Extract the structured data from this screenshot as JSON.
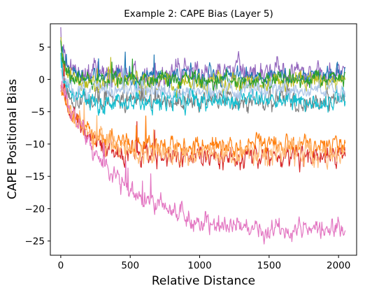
{
  "chart_data": {
    "type": "line",
    "title": "Example 2: CAPE Bias (Layer 5)",
    "xlabel": "Relative Distance",
    "ylabel": "CAPE Positional Bias",
    "xlim": [
      -75,
      2130
    ],
    "ylim": [
      -27.2,
      8.6
    ],
    "x_ticks": [
      0,
      500,
      1000,
      1500,
      2000
    ],
    "y_ticks": [
      5,
      0,
      -5,
      -10,
      -15,
      -20,
      -25
    ],
    "x_tick_labels": [
      "0",
      "500",
      "1000",
      "1500",
      "2000"
    ],
    "y_tick_labels": [
      "5",
      "0",
      "−5",
      "−10",
      "−15",
      "−20",
      "−25"
    ],
    "grid": false,
    "legend": "none",
    "x_range": [
      0,
      2048
    ],
    "series": [
      {
        "color": "#9467bd",
        "start": 7.8,
        "end": 1.0,
        "tau": 25,
        "noise": 1.7
      },
      {
        "color": "#1f77b4",
        "start": 6.5,
        "end": 0.5,
        "tau": 25,
        "noise": 1.3
      },
      {
        "color": "#bcbd22",
        "start": 6.0,
        "end": -0.5,
        "tau": 25,
        "noise": 1.5
      },
      {
        "color": "#2ca02c",
        "start": 5.5,
        "end": 0.0,
        "tau": 25,
        "noise": 1.2
      },
      {
        "color": "#7f7f7f",
        "start": 3.0,
        "end": -3.3,
        "tau": 30,
        "noise": 1.5
      },
      {
        "color": "#d62728",
        "start": -1.0,
        "end": -12.0,
        "tau": 160,
        "noise": 1.6
      },
      {
        "color": "#ff7f0e",
        "start": -1.5,
        "end": -10.2,
        "tau": 150,
        "noise": 1.4
      },
      {
        "color": "#ffbb78",
        "start": -1.0,
        "end": -11.5,
        "tau": 170,
        "noise": 1.8
      },
      {
        "color": "#17becf",
        "start": 4.5,
        "end": -3.2,
        "tau": 30,
        "noise": 1.6
      },
      {
        "color": "#aec7e8",
        "start": 2.0,
        "end": -1.6,
        "tau": 30,
        "noise": 1.3
      },
      {
        "color": "#e377c2",
        "start": -1.0,
        "end": -23.8,
        "tau": 420,
        "noise": 1.5
      }
    ]
  }
}
